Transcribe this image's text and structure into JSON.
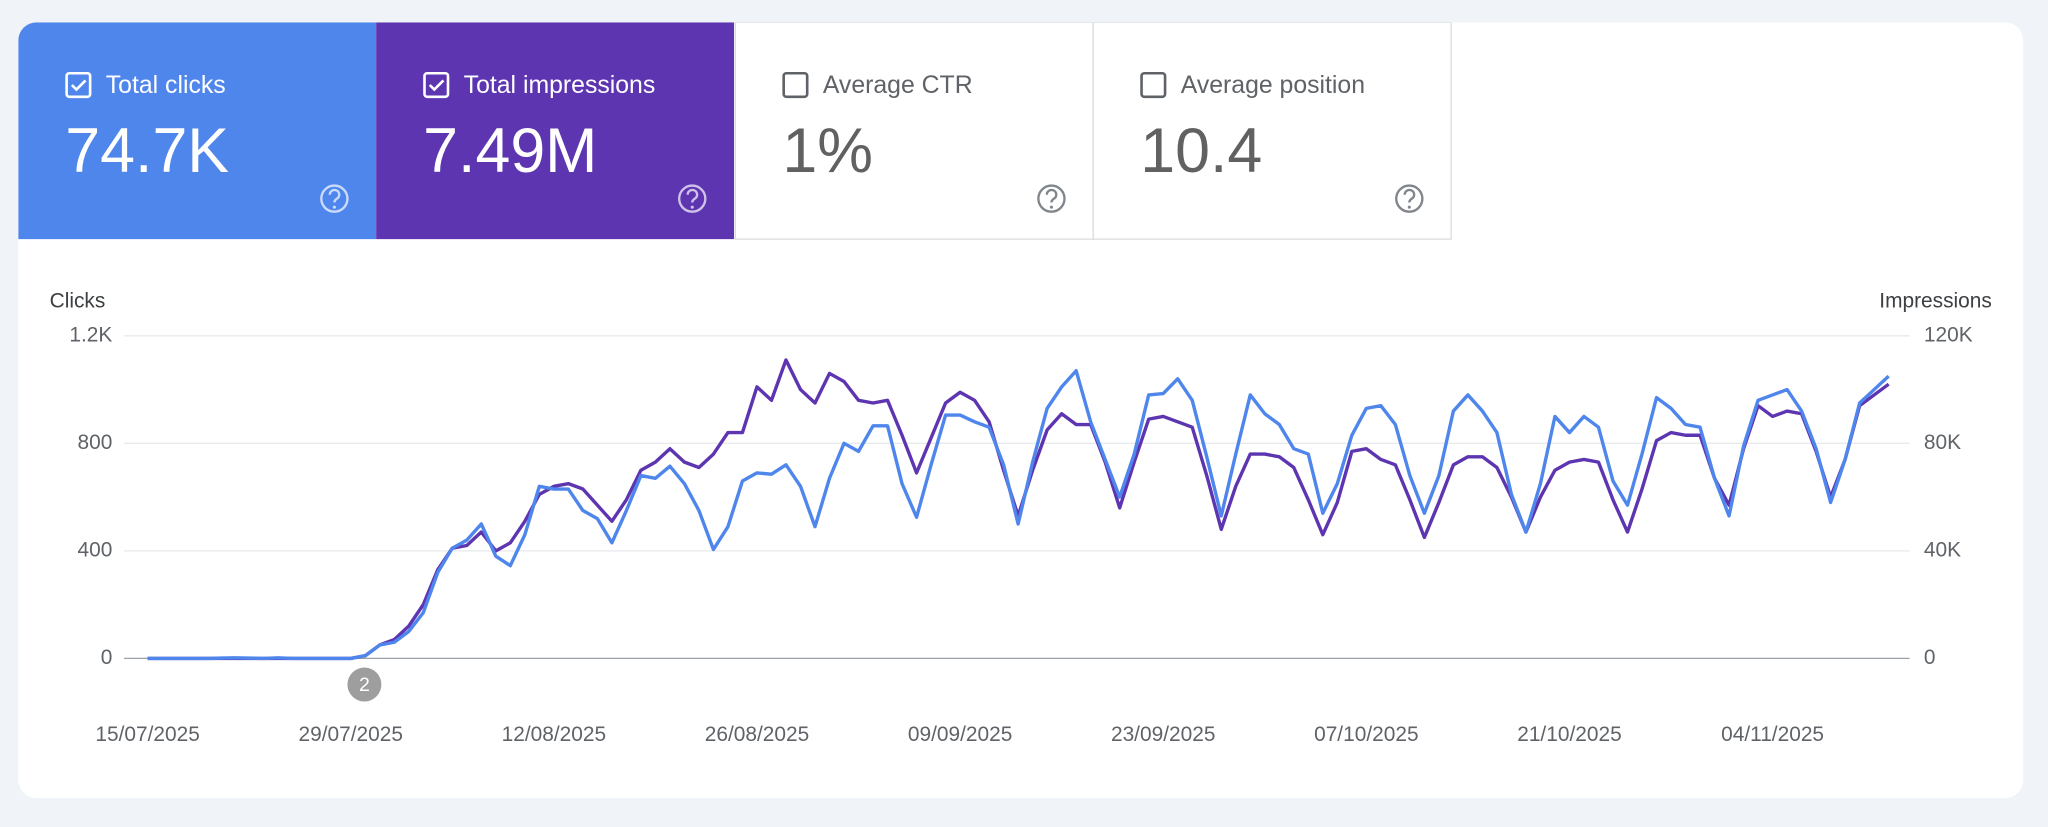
{
  "cards": [
    {
      "label": "Total clicks",
      "value": "74.7K",
      "checked": true,
      "color": "#4f86ec"
    },
    {
      "label": "Total impressions",
      "value": "7.49M",
      "checked": true,
      "color": "#5e35b1"
    },
    {
      "label": "Average CTR",
      "value": "1%",
      "checked": false
    },
    {
      "label": "Average position",
      "value": "10.4",
      "checked": false
    }
  ],
  "chart_data": {
    "type": "line",
    "y_label": "Clicks",
    "y2_label": "Impressions",
    "annotation": "2",
    "categories": [
      "15/07/2025",
      null,
      null,
      null,
      null,
      null,
      null,
      null,
      null,
      null,
      null,
      null,
      null,
      null,
      "29/07/2025",
      null,
      null,
      null,
      null,
      null,
      null,
      null,
      null,
      null,
      null,
      null,
      null,
      null,
      "12/08/2025",
      null,
      null,
      null,
      null,
      null,
      null,
      null,
      null,
      null,
      null,
      null,
      null,
      null,
      "26/08/2025",
      null,
      null,
      null,
      null,
      null,
      null,
      null,
      null,
      null,
      null,
      null,
      null,
      null,
      "09/09/2025",
      null,
      null,
      null,
      null,
      null,
      null,
      null,
      null,
      null,
      null,
      null,
      null,
      null,
      "23/09/2025",
      null,
      null,
      null,
      null,
      null,
      null,
      null,
      null,
      null,
      null,
      null,
      null,
      null,
      "07/10/2025",
      null,
      null,
      null,
      null,
      null,
      null,
      null,
      null,
      null,
      null,
      null,
      null,
      null,
      "21/10/2025",
      null,
      null,
      null,
      null,
      null,
      null,
      null,
      null,
      null,
      null,
      null,
      null,
      null,
      "04/11/2025",
      null,
      null,
      null,
      null,
      null,
      null,
      null,
      null
    ],
    "series": [
      {
        "color": "#5e35b1",
        "axis": "y2",
        "values": [
          0,
          0,
          0,
          0,
          0,
          0,
          0,
          0,
          0,
          0,
          0,
          0,
          0,
          0,
          0,
          1000,
          5000,
          7000,
          12000,
          20000,
          33000,
          41000,
          42000,
          47000,
          40000,
          43000,
          51000,
          61000,
          64000,
          65000,
          63000,
          57000,
          51000,
          59000,
          70000,
          73000,
          78000,
          73000,
          71000,
          76000,
          84000,
          84000,
          101000,
          96000,
          111000,
          100000,
          95000,
          106000,
          103000,
          96000,
          95000,
          96000,
          83000,
          69000,
          82000,
          95000,
          99000,
          96000,
          88000,
          70000,
          53000,
          70000,
          85000,
          91000,
          87000,
          87000,
          73000,
          56000,
          73000,
          89000,
          90000,
          88000,
          86000,
          68000,
          48000,
          64000,
          76000,
          76000,
          75000,
          71000,
          59000,
          46000,
          58000,
          77000,
          78000,
          74000,
          72000,
          59000,
          45000,
          58000,
          72000,
          75000,
          75000,
          71000,
          60000,
          47000,
          60000,
          70000,
          73000,
          74000,
          73000,
          59000,
          47000,
          63000,
          81000,
          84000,
          83000,
          83000,
          67000,
          57000,
          78000,
          94000,
          90000,
          92000,
          91000,
          77000,
          60000,
          74000,
          94000,
          98000,
          102000
        ]
      },
      {
        "color": "#4f86ec",
        "values": [
          0,
          0,
          0,
          0,
          0,
          1,
          2,
          1,
          0,
          2,
          0,
          0,
          0,
          0,
          0,
          10,
          50,
          60,
          100,
          170,
          320,
          410,
          440,
          500,
          380,
          345,
          460,
          640,
          630,
          630,
          550,
          520,
          430,
          550,
          680,
          670,
          715,
          650,
          550,
          405,
          490,
          660,
          690,
          685,
          720,
          640,
          490,
          670,
          800,
          770,
          865,
          865,
          650,
          525,
          720,
          905,
          905,
          880,
          860,
          720,
          500,
          730,
          930,
          1010,
          1070,
          880,
          740,
          600,
          760,
          980,
          985,
          1040,
          960,
          750,
          530,
          760,
          980,
          910,
          870,
          780,
          760,
          540,
          650,
          830,
          930,
          940,
          870,
          680,
          540,
          680,
          920,
          980,
          920,
          840,
          610,
          470,
          650,
          900,
          840,
          900,
          860,
          660,
          570,
          760,
          970,
          930,
          870,
          860,
          670,
          530,
          790,
          960,
          980,
          1000,
          920,
          780,
          580,
          740,
          950,
          1000,
          1050
        ]
      }
    ],
    "ylim": [
      0,
      1200
    ],
    "yticks": [
      0,
      400,
      800,
      {
        "value": 1200,
        "label": "1.2K"
      }
    ],
    "y2lim": [
      0,
      120000
    ],
    "y2ticks": [
      0,
      {
        "value": 40000,
        "label": "40K"
      },
      {
        "value": 80000,
        "label": "80K"
      },
      {
        "value": 120000,
        "label": "120K"
      }
    ],
    "grid": true
  }
}
